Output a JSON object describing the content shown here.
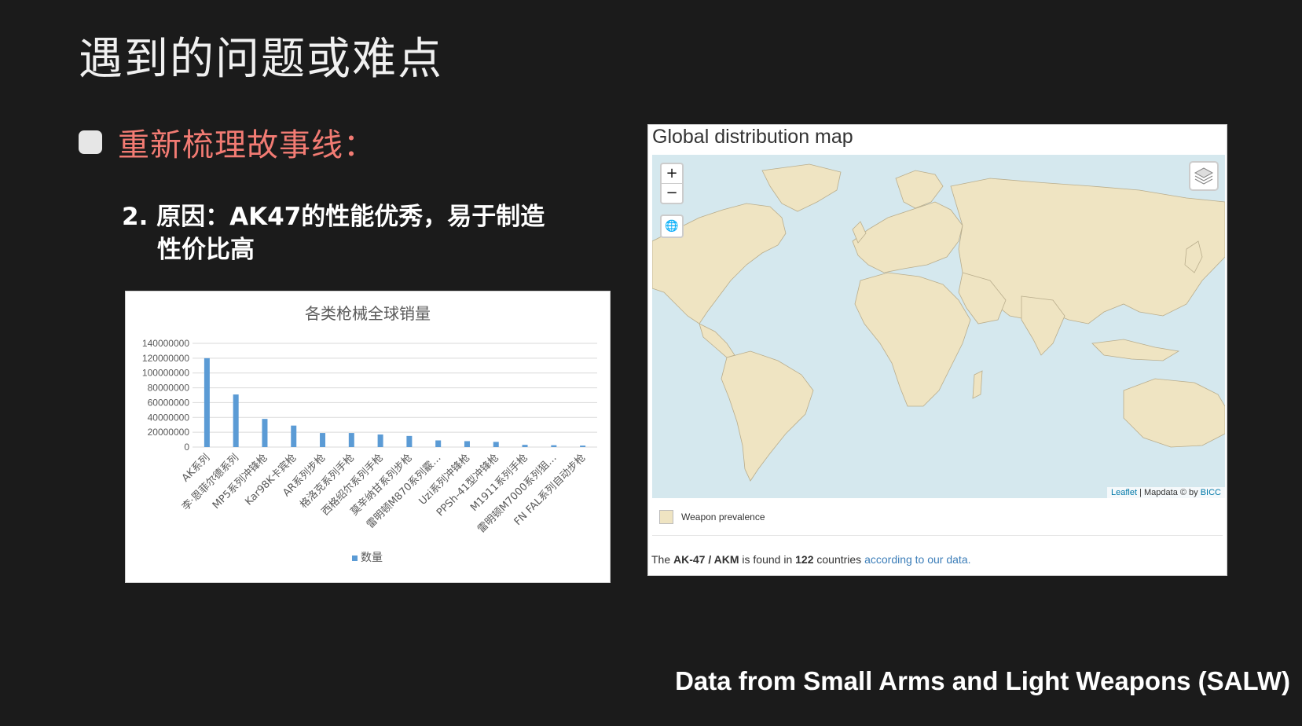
{
  "slide": {
    "title": "遇到的问题或难点",
    "bullet": "重新梳理故事线：",
    "reason_line1": "2. 原因：AK47的性能优秀，易于制造",
    "reason_line2": "性价比高",
    "source": "Data from Small Arms and Light Weapons (SALW)"
  },
  "chart_data": {
    "type": "bar",
    "title": "各类枪械全球销量",
    "categories": [
      "AK系列",
      "李·恩菲尔德系列",
      "MP5系列冲锋枪",
      "Kar98K卡宾枪",
      "AR系列步枪",
      "格洛克系列手枪",
      "西格绍尔系列手枪",
      "莫辛纳甘系列步枪",
      "雷明顿M870系列霰…",
      "Uzi系列冲锋枪",
      "PPSh-41型冲锋枪",
      "M1911系列手枪",
      "雷明顿M7000系列狙…",
      "FN FAL系列自动步枪"
    ],
    "series": [
      {
        "name": "数量",
        "values": [
          120000000,
          71000000,
          38000000,
          29000000,
          19000000,
          19000000,
          17000000,
          15000000,
          9000000,
          8000000,
          7000000,
          3000000,
          2500000,
          2000000
        ]
      }
    ],
    "ylim": [
      0,
      140000000
    ],
    "yticks": [
      "140000000",
      "120000000",
      "100000000",
      "80000000",
      "60000000",
      "40000000",
      "20000000",
      "0"
    ],
    "grid": true,
    "legend": "bottom",
    "bar_color": "#5b9bd5"
  },
  "map": {
    "title": "Global distribution map",
    "zoom_in": "+",
    "zoom_out": "−",
    "legend_label": "Weapon prevalence",
    "attribution_leaflet": "Leaflet",
    "attribution_rest": " | Mapdata © by ",
    "attribution_bicc": "BICC",
    "found_prefix": "The ",
    "found_weapon": "AK-47 / AKM",
    "found_mid": " is found in ",
    "found_count": "122",
    "found_suffix": " countries ",
    "found_link": "according to our data.",
    "land_color": "#efe4c2",
    "water_color": "#d5e8ee"
  }
}
